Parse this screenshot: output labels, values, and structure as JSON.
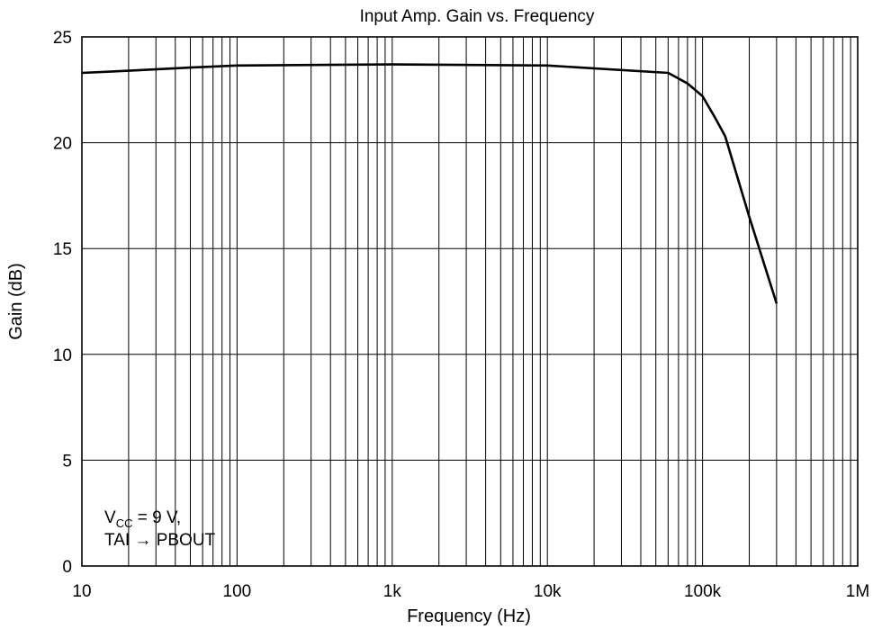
{
  "chart_data": {
    "type": "line",
    "title": "Input Amp. Gain vs. Frequency",
    "xlabel": "Frequency  (Hz)",
    "ylabel": "Gain  (dB)",
    "xscale": "log",
    "xlim": [
      10,
      1000000
    ],
    "ylim": [
      0,
      25
    ],
    "grid": true,
    "x_tick_labels": [
      {
        "value": 10,
        "label": "10"
      },
      {
        "value": 100,
        "label": "100"
      },
      {
        "value": 1000,
        "label": "1k"
      },
      {
        "value": 10000,
        "label": "10k"
      },
      {
        "value": 100000,
        "label": "100k"
      },
      {
        "value": 1000000,
        "label": "1M"
      }
    ],
    "y_tick_labels": [
      {
        "value": 0,
        "label": "0"
      },
      {
        "value": 5,
        "label": "5"
      },
      {
        "value": 10,
        "label": "10"
      },
      {
        "value": 15,
        "label": "15"
      },
      {
        "value": 20,
        "label": "20"
      },
      {
        "value": 25,
        "label": "25"
      }
    ],
    "series": [
      {
        "x": [
          10,
          20,
          50,
          100,
          1000,
          10000,
          60000,
          80000,
          100000,
          120000,
          140000,
          200000,
          300000
        ],
        "y": [
          23.3,
          23.4,
          23.55,
          23.65,
          23.7,
          23.65,
          23.3,
          22.8,
          22.2,
          21.2,
          20.3,
          16.5,
          12.4
        ]
      }
    ],
    "annotation": {
      "line1_main": "V",
      "line1_sub": "CC",
      "line1_rest": " = 9 V,",
      "line2": "TAI → PBOUT"
    }
  }
}
